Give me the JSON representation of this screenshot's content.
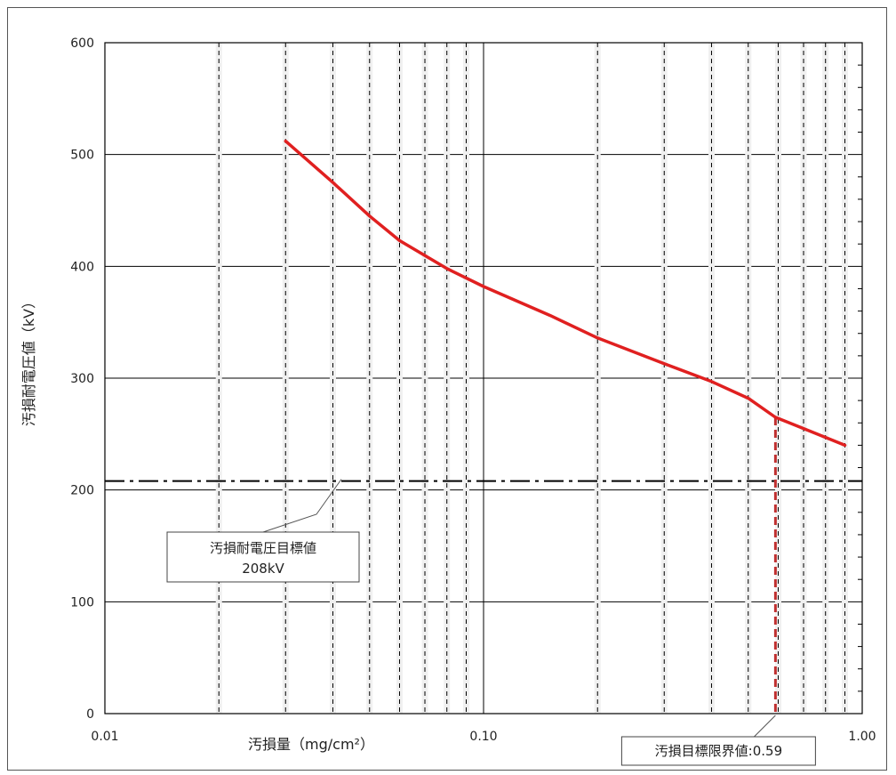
{
  "chart_data": {
    "type": "line",
    "x_scale": "log",
    "xlim": [
      0.01,
      1.0
    ],
    "ylim": [
      0,
      600
    ],
    "grid": true,
    "xlabel": "汚損量（mg/cm²）",
    "ylabel": "汚損耐電圧値（kV）",
    "x_tick_labels": [
      "0.01",
      "0.10",
      "1.00"
    ],
    "y_ticks": [
      0,
      100,
      200,
      300,
      400,
      500,
      600
    ],
    "series": [
      {
        "color": "#e02020",
        "points": [
          {
            "x": 0.03,
            "y": 512
          },
          {
            "x": 0.04,
            "y": 475
          },
          {
            "x": 0.05,
            "y": 445
          },
          {
            "x": 0.06,
            "y": 423
          },
          {
            "x": 0.08,
            "y": 398
          },
          {
            "x": 0.1,
            "y": 382
          },
          {
            "x": 0.15,
            "y": 356
          },
          {
            "x": 0.2,
            "y": 336
          },
          {
            "x": 0.3,
            "y": 313
          },
          {
            "x": 0.4,
            "y": 297
          },
          {
            "x": 0.5,
            "y": 282
          },
          {
            "x": 0.59,
            "y": 265
          },
          {
            "x": 0.7,
            "y": 255
          },
          {
            "x": 0.9,
            "y": 240
          }
        ]
      }
    ],
    "reference_line": {
      "y": 208,
      "color": "#000000",
      "style": "dash-dot"
    },
    "marker_line": {
      "x": 0.59,
      "color": "#c03030",
      "style": "dashed"
    },
    "annotations": [
      {
        "id": "target",
        "line1": "汚損耐電圧目標値",
        "line2": "208kV"
      },
      {
        "id": "limit",
        "text": "汚損目標限界値:0.59"
      }
    ]
  }
}
